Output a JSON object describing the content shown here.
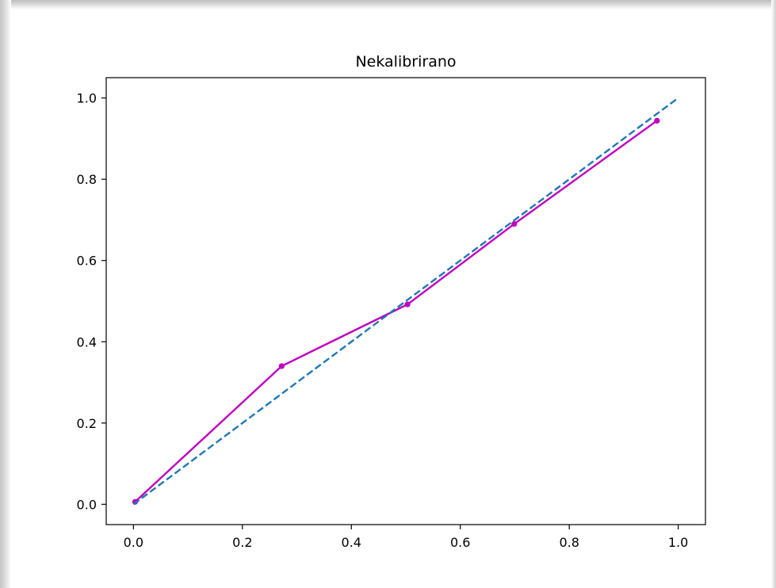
{
  "chart_data": {
    "type": "line",
    "title": "Nekalibrirano",
    "xlabel": "",
    "ylabel": "",
    "xlim": [
      -0.05,
      1.05
    ],
    "ylim": [
      -0.05,
      1.05
    ],
    "x_ticks": [
      0.0,
      0.2,
      0.4,
      0.6,
      0.8,
      1.0
    ],
    "x_tick_labels": [
      "0.0",
      "0.2",
      "0.4",
      "0.6",
      "0.8",
      "1.0"
    ],
    "y_ticks": [
      0.0,
      0.2,
      0.4,
      0.6,
      0.8,
      1.0
    ],
    "y_tick_labels": [
      "0.0",
      "0.2",
      "0.4",
      "0.6",
      "0.8",
      "1.0"
    ],
    "grid": false,
    "legend": "none",
    "series": [
      {
        "style": "solid",
        "marker": "dot",
        "color": "#bf00bf",
        "x": [
          0.003,
          0.272,
          0.503,
          0.699,
          0.961
        ],
        "y": [
          0.006,
          0.34,
          0.492,
          0.69,
          0.944
        ]
      },
      {
        "style": "dashed",
        "marker": "none",
        "color": "#1f77b4",
        "x": [
          0.0,
          1.0
        ],
        "y": [
          0.0,
          1.0
        ]
      }
    ]
  }
}
